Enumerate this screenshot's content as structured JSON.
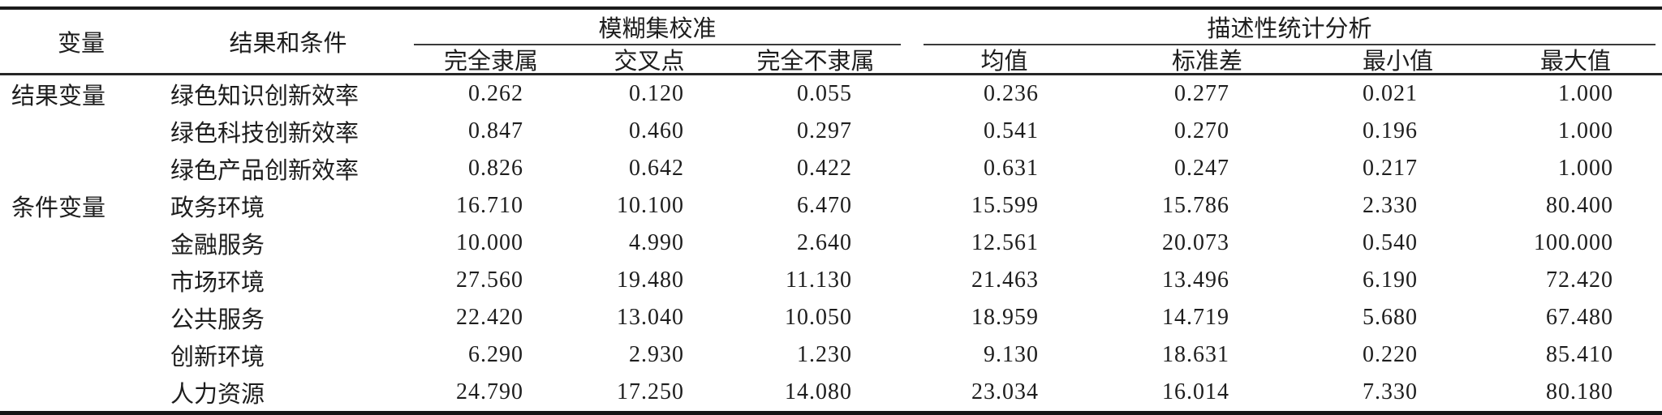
{
  "table": {
    "col_headers": [
      "变量",
      "结果和条件"
    ],
    "groups": [
      {
        "label": "模糊集校准",
        "columns": [
          "完全隶属",
          "交叉点",
          "完全不隶属"
        ]
      },
      {
        "label": "描述性统计分析",
        "columns": [
          "均值",
          "标准差",
          "最小值",
          "最大值"
        ]
      }
    ],
    "rows": [
      {
        "group": "结果变量",
        "name": "绿色知识创新效率",
        "values": [
          "0.262",
          "0.120",
          "0.055",
          "0.236",
          "0.277",
          "0.021",
          "1.000"
        ]
      },
      {
        "group": "",
        "name": "绿色科技创新效率",
        "values": [
          "0.847",
          "0.460",
          "0.297",
          "0.541",
          "0.270",
          "0.196",
          "1.000"
        ]
      },
      {
        "group": "",
        "name": "绿色产品创新效率",
        "values": [
          "0.826",
          "0.642",
          "0.422",
          "0.631",
          "0.247",
          "0.217",
          "1.000"
        ]
      },
      {
        "group": "条件变量",
        "name": "政务环境",
        "values": [
          "16.710",
          "10.100",
          "6.470",
          "15.599",
          "15.786",
          "2.330",
          "80.400"
        ]
      },
      {
        "group": "",
        "name": "金融服务",
        "values": [
          "10.000",
          "4.990",
          "2.640",
          "12.561",
          "20.073",
          "0.540",
          "100.000"
        ]
      },
      {
        "group": "",
        "name": "市场环境",
        "values": [
          "27.560",
          "19.480",
          "11.130",
          "21.463",
          "13.496",
          "6.190",
          "72.420"
        ]
      },
      {
        "group": "",
        "name": "公共服务",
        "values": [
          "22.420",
          "13.040",
          "10.050",
          "18.959",
          "14.719",
          "5.680",
          "67.480"
        ]
      },
      {
        "group": "",
        "name": "创新环境",
        "values": [
          "6.290",
          "2.930",
          "1.230",
          "9.130",
          "18.631",
          "0.220",
          "85.410"
        ]
      },
      {
        "group": "",
        "name": "人力资源",
        "values": [
          "24.790",
          "17.250",
          "14.080",
          "23.034",
          "16.014",
          "7.330",
          "80.180"
        ]
      }
    ]
  }
}
